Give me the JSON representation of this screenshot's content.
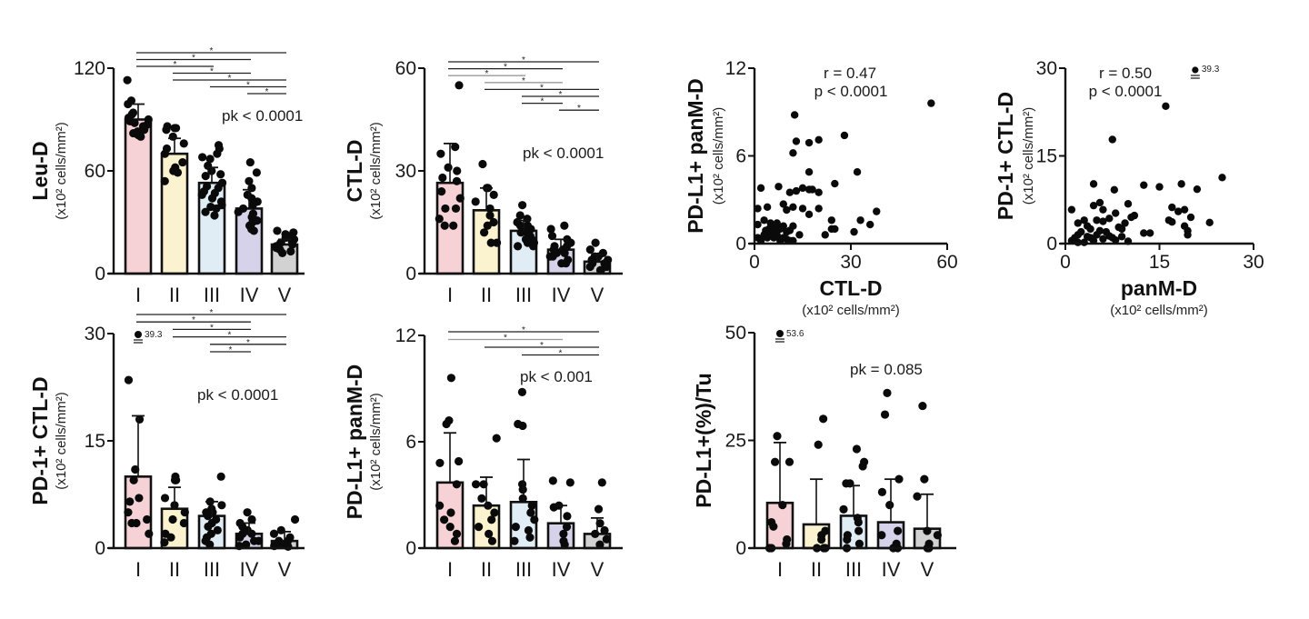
{
  "colors": {
    "I": "#f6d2d6",
    "II": "#fbf3cf",
    "III": "#e1edf5",
    "IV": "#d6d2ea",
    "V": "#d2d2d2",
    "axis": "#111111",
    "bracket_dark": "#222222",
    "bracket_gray": "#9a9a9a",
    "point": "#0a0a0a"
  },
  "chart_data": [
    {
      "id": "leu-d",
      "type": "bar",
      "ylabel": "Leu-D",
      "yunit": "(x10² cells/mm²)",
      "categories": [
        "I",
        "II",
        "III",
        "IV",
        "V"
      ],
      "ylim": [
        0,
        120
      ],
      "yticks": [
        0,
        60,
        120
      ],
      "means": [
        90,
        70,
        53,
        38,
        17
      ],
      "sd_upper": [
        99,
        79,
        62,
        49,
        20
      ],
      "annotation": "pk < 0.0001",
      "significance": [
        {
          "pair": [
            "I",
            "V"
          ],
          "label": "*",
          "shade": "dark"
        },
        {
          "pair": [
            "I",
            "IV"
          ],
          "label": "*",
          "shade": "dark"
        },
        {
          "pair": [
            "I",
            "III"
          ],
          "label": "*",
          "shade": "dark"
        },
        {
          "pair": [
            "II",
            "IV"
          ],
          "label": "*",
          "shade": "dark"
        },
        {
          "pair": [
            "II",
            "V"
          ],
          "label": "*",
          "shade": "dark"
        },
        {
          "pair": [
            "III",
            "V"
          ],
          "label": "*",
          "shade": "dark"
        },
        {
          "pair": [
            "IV",
            "V"
          ],
          "label": "*",
          "shade": "dark"
        }
      ],
      "points": [
        [
          113,
          101,
          99,
          94,
          93,
          91,
          90,
          89,
          88,
          87,
          86,
          84,
          83,
          82,
          81,
          80
        ],
        [
          86,
          85,
          85,
          84,
          80,
          76,
          73,
          70,
          65,
          62,
          60,
          59,
          54
        ],
        [
          75,
          73,
          70,
          68,
          67,
          63,
          60,
          58,
          57,
          53,
          51,
          50,
          48,
          47,
          46,
          44,
          42,
          40,
          39,
          38,
          36,
          34
        ],
        [
          65,
          59,
          54,
          50,
          46,
          44,
          42,
          40,
          38,
          36,
          35,
          33,
          31,
          30,
          28,
          26,
          25
        ],
        [
          25,
          24,
          23,
          22,
          21,
          20,
          19,
          18,
          17,
          16,
          15,
          14,
          13,
          12
        ]
      ]
    },
    {
      "id": "ctl-d",
      "type": "bar",
      "ylabel": "CTL-D",
      "yunit": "(x10² cells/mm²)",
      "categories": [
        "I",
        "II",
        "III",
        "IV",
        "V"
      ],
      "ylim": [
        0,
        60
      ],
      "yticks": [
        0,
        30,
        60
      ],
      "means": [
        26.5,
        18.5,
        12.5,
        7,
        3.5
      ],
      "sd_upper": [
        38,
        25,
        15.5,
        10,
        5.5
      ],
      "annotation": "pk < 0.0001",
      "significance": [
        {
          "pair": [
            "I",
            "V"
          ],
          "label": "*",
          "shade": "dark"
        },
        {
          "pair": [
            "I",
            "IV"
          ],
          "label": "*",
          "shade": "dark"
        },
        {
          "pair": [
            "I",
            "III"
          ],
          "label": "*",
          "shade": "gray"
        },
        {
          "pair": [
            "II",
            "IV"
          ],
          "label": "*",
          "shade": "gray"
        },
        {
          "pair": [
            "II",
            "V"
          ],
          "label": "*",
          "shade": "dark"
        },
        {
          "pair": [
            "III",
            "V"
          ],
          "label": "*",
          "shade": "dark"
        },
        {
          "pair": [
            "III",
            "IV"
          ],
          "label": "*",
          "shade": "dark"
        },
        {
          "pair": [
            "IV",
            "V"
          ],
          "label": "*",
          "shade": "dark"
        }
      ],
      "points": [
        [
          55,
          37,
          35,
          31,
          30,
          28,
          27,
          24,
          22,
          19,
          19,
          16,
          14,
          14
        ],
        [
          32,
          25,
          25,
          23,
          21,
          19,
          17,
          15,
          14,
          12,
          9,
          9
        ],
        [
          20,
          17,
          16,
          15,
          14,
          14,
          13,
          13,
          12,
          12,
          11,
          10,
          10,
          9,
          9,
          8,
          8
        ],
        [
          14,
          13,
          11,
          10,
          9,
          8,
          8,
          7,
          7,
          6,
          6,
          5,
          5,
          4,
          3,
          3
        ],
        [
          9,
          7,
          6,
          5,
          5,
          4,
          4,
          3,
          3,
          2,
          2,
          1,
          1
        ]
      ]
    },
    {
      "id": "pd1-ctl-d",
      "type": "bar",
      "ylabel": "PD-1+ CTL-D",
      "yunit": "(x10² cells/mm²)",
      "categories": [
        "I",
        "II",
        "III",
        "IV",
        "V"
      ],
      "ylim": [
        0,
        30
      ],
      "yticks": [
        0,
        15,
        30
      ],
      "means": [
        10,
        5.5,
        4.5,
        2,
        1
      ],
      "sd_upper": [
        18.5,
        8.5,
        6.5,
        3.5,
        2.3
      ],
      "outlier_label": "39.3",
      "annotation": "pk < 0.0001",
      "significance": [
        {
          "pair": [
            "I",
            "V"
          ],
          "label": "*",
          "shade": "dark"
        },
        {
          "pair": [
            "I",
            "IV"
          ],
          "label": "*",
          "shade": "dark"
        },
        {
          "pair": [
            "II",
            "IV"
          ],
          "label": "*",
          "shade": "dark"
        },
        {
          "pair": [
            "II",
            "V"
          ],
          "label": "*",
          "shade": "dark"
        },
        {
          "pair": [
            "III",
            "V"
          ],
          "label": "*",
          "shade": "dark"
        },
        {
          "pair": [
            "III",
            "IV"
          ],
          "label": "*",
          "shade": "dark"
        }
      ],
      "points": [
        [
          23.5,
          18,
          11,
          9.5,
          7,
          6.5,
          5,
          4,
          3.5,
          3.5,
          2
        ],
        [
          10,
          9.5,
          9.5,
          7,
          6,
          5,
          4,
          3.5,
          2,
          1.5,
          0.8
        ],
        [
          10,
          6.5,
          6,
          5.5,
          5,
          5,
          4.5,
          4,
          3.5,
          3,
          2.5,
          2,
          1.5,
          1,
          0.5
        ],
        [
          5,
          4,
          3.5,
          3,
          2.5,
          2,
          2,
          1.5,
          1,
          1,
          0.5,
          0.3
        ],
        [
          4,
          2.5,
          2,
          1.5,
          1,
          1,
          0.5,
          0.3,
          0.2
        ]
      ]
    },
    {
      "id": "pdl1-panm-d",
      "type": "bar",
      "ylabel": "PD-L1+ panM-D",
      "yunit": "(x10² cells/mm²)",
      "categories": [
        "I",
        "II",
        "III",
        "IV",
        "V"
      ],
      "ylim": [
        0,
        12
      ],
      "yticks": [
        0,
        6,
        12
      ],
      "means": [
        3.7,
        2.4,
        2.6,
        1.4,
        0.8
      ],
      "sd_upper": [
        6.5,
        4,
        5,
        2.4,
        1.7
      ],
      "annotation": "pk < 0.001",
      "significance": [
        {
          "pair": [
            "I",
            "V"
          ],
          "label": "*",
          "shade": "dark"
        },
        {
          "pair": [
            "I",
            "IV"
          ],
          "label": "*",
          "shade": "gray"
        },
        {
          "pair": [
            "II",
            "V"
          ],
          "label": "*",
          "shade": "dark"
        },
        {
          "pair": [
            "III",
            "V"
          ],
          "label": "*",
          "shade": "dark"
        }
      ],
      "points": [
        [
          9.6,
          7.2,
          7.0,
          4.9,
          4.8,
          3.6,
          2.4,
          2.0,
          1.6,
          1.2,
          0.8,
          0.4
        ],
        [
          6.2,
          3.6,
          3.6,
          2.8,
          2.4,
          2.0,
          1.6,
          1.2,
          0.8,
          0.4
        ],
        [
          8.8,
          7.0,
          6.9,
          3.6,
          3.3,
          2.8,
          2.4,
          2.0,
          1.6,
          1.2,
          1.0,
          0.6,
          0.4
        ],
        [
          3.8,
          3.7,
          2.4,
          2.3,
          1.8,
          1.2,
          0.8,
          0.4,
          0.2
        ],
        [
          3.7,
          2.2,
          1.4,
          1.0,
          0.8,
          0.5,
          0.2
        ]
      ]
    },
    {
      "id": "pdl1-pct-tu",
      "type": "bar",
      "ylabel": "PD-L1+(%)/Tu",
      "yunit": "",
      "categories": [
        "I",
        "II",
        "III",
        "IV",
        "V"
      ],
      "ylim": [
        0,
        50
      ],
      "yticks": [
        0,
        25,
        50
      ],
      "means": [
        10.5,
        5.5,
        7.5,
        6,
        4.5
      ],
      "sd_upper": [
        24.5,
        16,
        14.5,
        16,
        12.5
      ],
      "outlier_label": "53.6",
      "annotation": "pk = 0.085",
      "significance": [],
      "points": [
        [
          26,
          20,
          20,
          10,
          6,
          5,
          2,
          1,
          0,
          0
        ],
        [
          30,
          24,
          4,
          3,
          2,
          0,
          0,
          0
        ],
        [
          23,
          20,
          19,
          15,
          15,
          9,
          7,
          6,
          4,
          3,
          2,
          1,
          0
        ],
        [
          36,
          31,
          16,
          13,
          10,
          4,
          3,
          1,
          0,
          0
        ],
        [
          33,
          16,
          12,
          4,
          3,
          1,
          0,
          0
        ]
      ]
    },
    {
      "id": "scatter-ctl-pdl1",
      "type": "scatter",
      "xlabel": "CTL-D",
      "xunit": "(x10² cells/mm²)",
      "ylabel": "PD-L1+ panM-D",
      "yunit": "(x10² cells/mm²)",
      "xlim": [
        0,
        60
      ],
      "ylim": [
        0,
        12
      ],
      "xticks": [
        0,
        30,
        60
      ],
      "yticks": [
        0,
        6,
        12
      ],
      "r_label": "r = 0.47",
      "p_label": "p < 0.0001",
      "points": [
        [
          55,
          9.6
        ],
        [
          12.5,
          8.8
        ],
        [
          28,
          7.4
        ],
        [
          13,
          7.0
        ],
        [
          17,
          6.9
        ],
        [
          20,
          7.1
        ],
        [
          12,
          6.2
        ],
        [
          32,
          4.9
        ],
        [
          17,
          4.9
        ],
        [
          25,
          4.1
        ],
        [
          2,
          3.8
        ],
        [
          7.5,
          3.9
        ],
        [
          11,
          3.5
        ],
        [
          13,
          3.6
        ],
        [
          15,
          3.8
        ],
        [
          17,
          3.7
        ],
        [
          18,
          3.7
        ],
        [
          20,
          3.5
        ],
        [
          1,
          2.4
        ],
        [
          4,
          2.5
        ],
        [
          9,
          2.7
        ],
        [
          10,
          2.3
        ],
        [
          12,
          2.5
        ],
        [
          15,
          2.4
        ],
        [
          17,
          2.0
        ],
        [
          20,
          2.4
        ],
        [
          24,
          1.6
        ],
        [
          33,
          1.6
        ],
        [
          38,
          2.2
        ],
        [
          36,
          1.3
        ],
        [
          31,
          0.8
        ],
        [
          1,
          1.3
        ],
        [
          3,
          1.6
        ],
        [
          5,
          1.4
        ],
        [
          6,
          1.2
        ],
        [
          7,
          1.4
        ],
        [
          8,
          1.0
        ],
        [
          9,
          1.2
        ],
        [
          10,
          0.8
        ],
        [
          11,
          0.9
        ],
        [
          12,
          1.2
        ],
        [
          14,
          0.6
        ],
        [
          22,
          0.6
        ],
        [
          24,
          1.0
        ],
        [
          25,
          1.0
        ],
        [
          1,
          0.4
        ],
        [
          2,
          0.2
        ],
        [
          3,
          0.6
        ],
        [
          4,
          0.4
        ],
        [
          5,
          0.8
        ],
        [
          6,
          0.4
        ],
        [
          7,
          0.6
        ],
        [
          8,
          0.2
        ],
        [
          9,
          0.4
        ],
        [
          10,
          0.3
        ],
        [
          11,
          0.2
        ],
        [
          12,
          0.2
        ],
        [
          3.5,
          0.9
        ],
        [
          4.5,
          1.0
        ],
        [
          5.5,
          0.7
        ],
        [
          6.5,
          0.9
        ]
      ]
    },
    {
      "id": "scatter-panm-pd1",
      "type": "scatter",
      "xlabel": "panM-D",
      "xunit": "(x10² cells/mm²)",
      "ylabel": "PD-1+ CTL-D",
      "yunit": "(x10² cells/mm²)",
      "xlim": [
        0,
        30
      ],
      "ylim": [
        0,
        30
      ],
      "xticks": [
        0,
        15,
        30
      ],
      "yticks": [
        0,
        15,
        30
      ],
      "r_label": "r = 0.50",
      "p_label": "p < 0.0001",
      "outlier_label": "39.3",
      "points": [
        [
          16,
          23.5
        ],
        [
          7.5,
          17.8
        ],
        [
          25,
          11.3
        ],
        [
          4.5,
          10.2
        ],
        [
          7.8,
          9.2
        ],
        [
          12.5,
          10
        ],
        [
          15,
          9.7
        ],
        [
          18.5,
          10.2
        ],
        [
          21,
          9.3
        ],
        [
          1,
          5.8
        ],
        [
          4.5,
          6.5
        ],
        [
          5.5,
          7
        ],
        [
          6,
          5.8
        ],
        [
          8,
          5.2
        ],
        [
          10,
          6.8
        ],
        [
          10.5,
          4.5
        ],
        [
          11,
          4.8
        ],
        [
          17,
          6.2
        ],
        [
          18,
          5.5
        ],
        [
          19,
          5.8
        ],
        [
          20,
          4.5
        ],
        [
          16.5,
          4
        ],
        [
          17,
          3.7
        ],
        [
          19,
          3
        ],
        [
          19.5,
          2.2
        ],
        [
          19.5,
          1.5
        ],
        [
          23,
          3.6
        ],
        [
          12.5,
          1.8
        ],
        [
          13.5,
          1.8
        ],
        [
          2,
          3.5
        ],
        [
          3,
          4
        ],
        [
          3.5,
          3
        ],
        [
          4,
          2.5
        ],
        [
          5,
          4
        ],
        [
          6,
          3.8
        ],
        [
          7,
          4.3
        ],
        [
          8.5,
          2.8
        ],
        [
          9,
          2.5
        ],
        [
          9.5,
          3.5
        ],
        [
          1,
          0.5
        ],
        [
          2,
          1.5
        ],
        [
          3,
          0.2
        ],
        [
          4,
          1
        ],
        [
          5,
          1.5
        ],
        [
          6,
          0.8
        ],
        [
          7,
          1.3
        ],
        [
          8,
          0.6
        ],
        [
          9,
          1.2
        ],
        [
          10,
          0.4
        ],
        [
          2.5,
          2
        ],
        [
          3.5,
          1.2
        ],
        [
          4.5,
          0.5
        ],
        [
          5.5,
          2.2
        ],
        [
          6.5,
          2
        ],
        [
          7.5,
          1
        ],
        [
          2,
          0.2
        ],
        [
          1.5,
          1
        ]
      ]
    }
  ]
}
